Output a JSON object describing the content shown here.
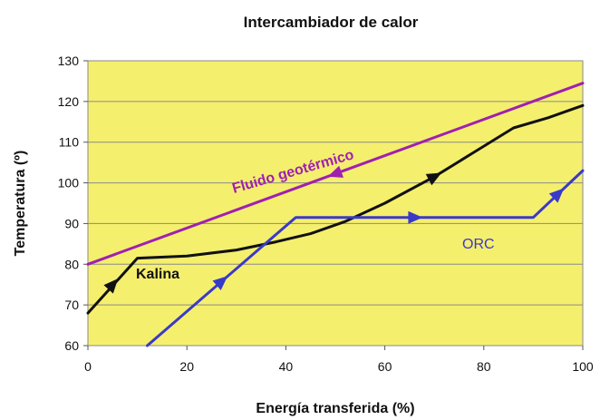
{
  "chart_data": {
    "type": "line",
    "title": "Intercambiador de calor",
    "xlabel": "Energía transferida (%)",
    "ylabel": "Temperatura (º)",
    "xlim": [
      0,
      100
    ],
    "ylim": [
      60,
      130
    ],
    "xticks": [
      "0",
      "20",
      "40",
      "60",
      "80",
      "100"
    ],
    "yticks": [
      "60",
      "70",
      "80",
      "90",
      "100",
      "110",
      "120",
      "130"
    ],
    "grid": "horizontal",
    "plot_background": "#f5ef6e",
    "series": [
      {
        "name": "Fluido geotérmico",
        "color": "#a020b0",
        "x": [
          0,
          100
        ],
        "y": [
          80,
          124.5
        ],
        "arrows": [
          {
            "x": 50,
            "y": 102.2,
            "direction": "left"
          }
        ]
      },
      {
        "name": "Kalina",
        "color": "#111111",
        "x": [
          0,
          10,
          20,
          30,
          38,
          45,
          52,
          60,
          70,
          78,
          86,
          93,
          100
        ],
        "y": [
          68,
          81.5,
          82,
          83.5,
          85.5,
          87.5,
          90.5,
          95,
          101.5,
          107.5,
          113.5,
          116,
          119
        ],
        "arrows": [
          {
            "x": 5,
            "y": 75,
            "direction": "right"
          },
          {
            "x": 70,
            "y": 101.5,
            "direction": "right"
          }
        ]
      },
      {
        "name": "ORC",
        "color": "#3a3ac8",
        "x": [
          12,
          42,
          90,
          100
        ],
        "y": [
          60,
          91.5,
          91.5,
          103
        ],
        "arrows": [
          {
            "x": 27,
            "y": 75.8,
            "direction": "right"
          },
          {
            "x": 66,
            "y": 91.5,
            "direction": "right"
          },
          {
            "x": 95,
            "y": 97.3,
            "direction": "right"
          }
        ]
      }
    ],
    "annotations": [
      {
        "text": "Fluido geotérmico",
        "series": 0
      },
      {
        "text": "Kalina",
        "series": 1
      },
      {
        "text": "ORC",
        "series": 2
      }
    ]
  }
}
